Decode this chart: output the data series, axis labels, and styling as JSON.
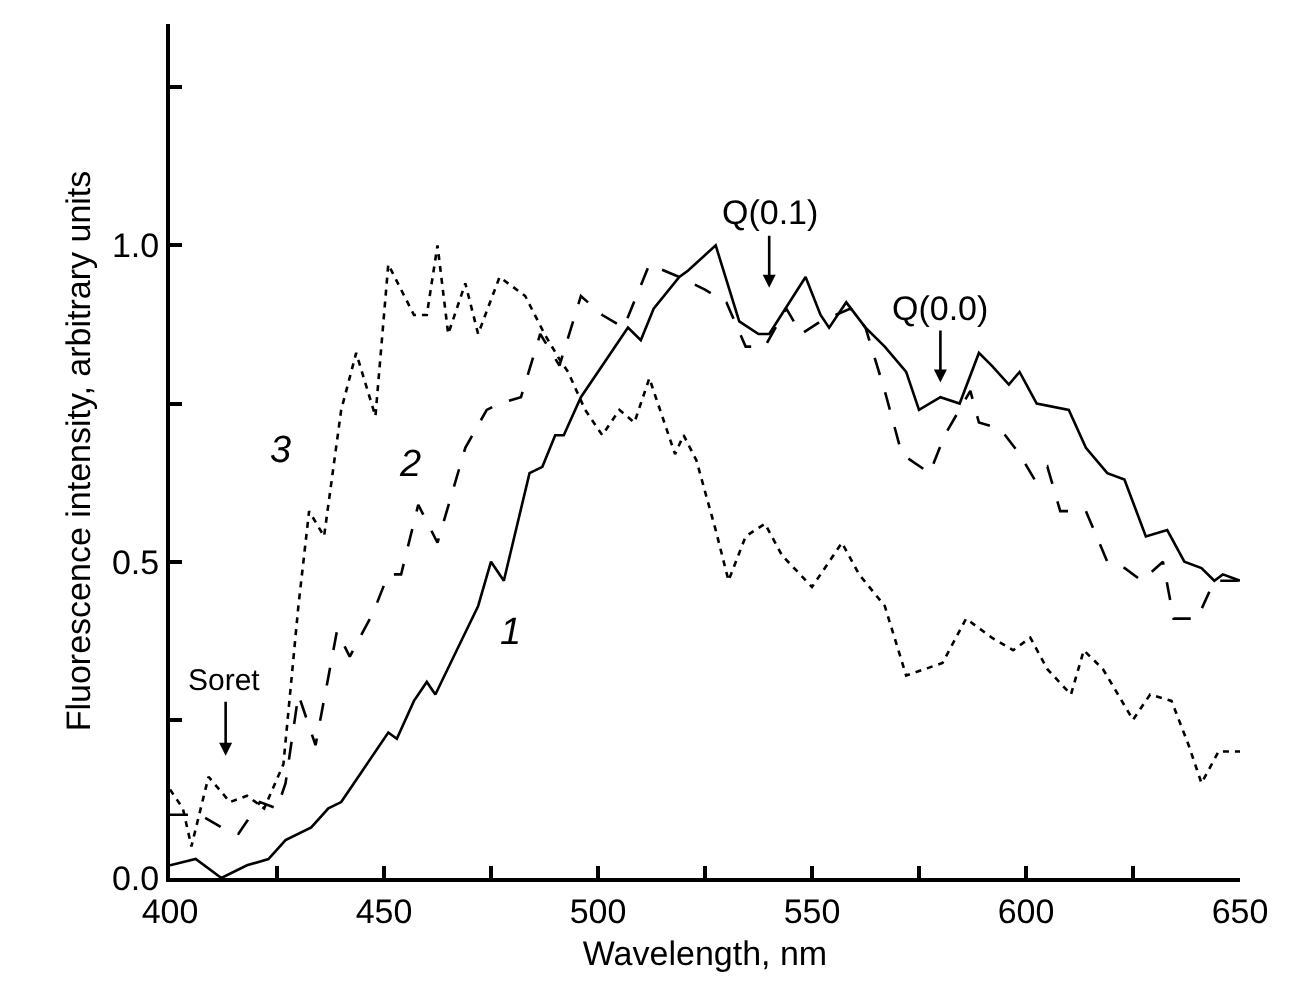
{
  "chart_data": {
    "type": "line",
    "xlabel": "Wavelength, nm",
    "ylabel": "Fluorescence intensity, arbitrary units",
    "xlim": [
      400,
      650
    ],
    "ylim": [
      0,
      1.35
    ],
    "xticks": [
      400,
      {
        "value": 425,
        "label": null
      },
      450,
      {
        "value": 475,
        "label": null
      },
      500,
      {
        "value": 525,
        "label": null
      },
      550,
      {
        "value": 575,
        "label": null
      },
      600,
      {
        "value": 625,
        "label": null
      },
      650
    ],
    "yticks": [
      {
        "value": 0,
        "label": "0.0"
      },
      {
        "value": 0.25,
        "label": null
      },
      0.5,
      {
        "value": 0.75,
        "label": null
      },
      {
        "value": 1,
        "label": "1.0"
      },
      {
        "value": 1.25,
        "label": null
      }
    ],
    "grid": false,
    "legend": false,
    "marker": "none",
    "series": [
      {
        "name": "1",
        "color": "#000000",
        "line_style": "solid",
        "x": [
          400,
          406,
          412,
          418,
          423,
          427,
          433,
          437,
          440,
          445,
          451,
          453,
          457,
          460,
          462,
          467,
          472,
          475,
          478,
          484,
          487,
          490,
          492,
          496,
          502,
          507,
          510,
          513,
          519,
          521,
          527.5,
          533,
          537.5,
          540,
          548.5,
          552,
          554,
          558,
          562.5,
          567,
          572,
          575,
          580,
          584.5,
          589,
          592,
          596,
          598.5,
          602.5,
          610,
          614,
          619,
          623,
          628,
          633,
          637,
          641,
          644,
          646,
          650
        ],
        "values": [
          0.02,
          0.03,
          0.0,
          0.02,
          0.03,
          0.06,
          0.08,
          0.11,
          0.12,
          0.17,
          0.23,
          0.22,
          0.28,
          0.31,
          0.29,
          0.36,
          0.43,
          0.5,
          0.47,
          0.64,
          0.65,
          0.7,
          0.7,
          0.76,
          0.82,
          0.87,
          0.85,
          0.9,
          0.95,
          0.96,
          1.0,
          0.88,
          0.86,
          0.86,
          0.95,
          0.89,
          0.87,
          0.91,
          0.87,
          0.84,
          0.8,
          0.74,
          0.76,
          0.75,
          0.83,
          0.81,
          0.78,
          0.8,
          0.75,
          0.74,
          0.68,
          0.64,
          0.63,
          0.54,
          0.55,
          0.5,
          0.49,
          0.47,
          0.48,
          0.47
        ]
      },
      {
        "name": "2",
        "color": "#000000",
        "line_style": "dashed",
        "x": [
          400,
          407,
          412,
          416,
          421,
          425,
          427,
          430,
          434,
          439,
          442,
          447.5,
          451,
          454,
          458,
          462.5,
          469,
          474,
          477,
          482,
          486.5,
          491,
          496,
          501,
          506,
          512,
          519,
          525,
          530,
          534.5,
          539,
          544,
          547.5,
          552,
          559,
          562.5,
          567,
          571,
          577.5,
          581,
          587,
          589,
          594,
          598.5,
          602,
          605,
          608,
          614,
          619,
          623,
          627,
          632,
          634.5,
          640,
          644,
          650
        ],
        "values": [
          0.1,
          0.1,
          0.08,
          0.07,
          0.12,
          0.11,
          0.15,
          0.29,
          0.21,
          0.39,
          0.35,
          0.42,
          0.48,
          0.48,
          0.59,
          0.53,
          0.68,
          0.74,
          0.75,
          0.76,
          0.86,
          0.81,
          0.92,
          0.89,
          0.87,
          0.97,
          0.95,
          0.93,
          0.91,
          0.84,
          0.84,
          0.9,
          0.86,
          0.88,
          0.9,
          0.87,
          0.77,
          0.67,
          0.64,
          0.7,
          0.77,
          0.72,
          0.71,
          0.67,
          0.63,
          0.65,
          0.58,
          0.58,
          0.5,
          0.49,
          0.47,
          0.5,
          0.41,
          0.41,
          0.47,
          0.47
        ]
      },
      {
        "name": "3",
        "color": "#000000",
        "line_style": "dotted",
        "x": [
          400,
          403,
          405,
          409,
          414,
          418,
          422,
          426.5,
          430,
          432.5,
          436,
          440,
          443.5,
          448,
          451,
          457,
          460,
          462.5,
          465,
          469,
          472,
          477,
          483,
          487.5,
          491,
          493,
          497,
          501,
          505,
          508.5,
          512,
          516,
          518,
          520,
          523,
          527.5,
          530.5,
          534.5,
          539,
          543,
          550,
          557,
          561,
          567,
          572,
          580.5,
          586,
          592,
          597,
          601,
          605,
          610.5,
          613.5,
          618,
          625,
          629,
          634,
          638,
          641,
          645,
          650
        ],
        "values": [
          0.14,
          0.11,
          0.05,
          0.16,
          0.12,
          0.13,
          0.11,
          0.18,
          0.43,
          0.58,
          0.54,
          0.74,
          0.83,
          0.73,
          0.97,
          0.89,
          0.89,
          1.0,
          0.86,
          0.94,
          0.86,
          0.95,
          0.92,
          0.86,
          0.82,
          0.8,
          0.74,
          0.7,
          0.74,
          0.72,
          0.79,
          0.71,
          0.67,
          0.7,
          0.66,
          0.55,
          0.47,
          0.54,
          0.56,
          0.51,
          0.46,
          0.53,
          0.48,
          0.43,
          0.32,
          0.34,
          0.41,
          0.38,
          0.36,
          0.38,
          0.33,
          0.29,
          0.36,
          0.33,
          0.25,
          0.29,
          0.28,
          0.21,
          0.15,
          0.2,
          0.2
        ]
      }
    ],
    "annotations": [
      "Soret",
      "Q(0.1)",
      "Q(0.0)"
    ]
  }
}
